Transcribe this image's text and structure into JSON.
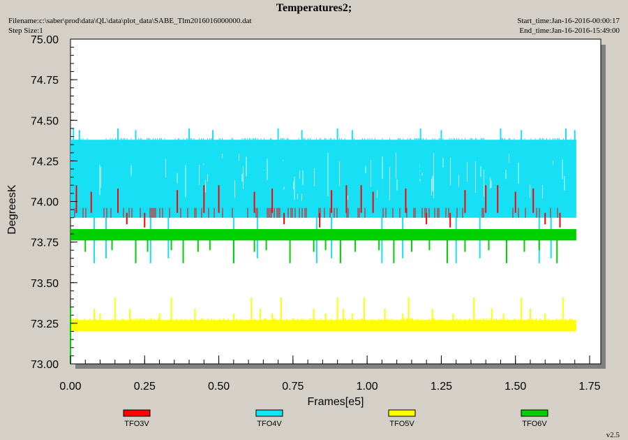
{
  "header": {
    "title": "Temperatures2;",
    "filename": "Filename:c:\\saber\\prod\\data\\QL\\data\\plot_data\\SABE_Tlm2016016000000.dat",
    "step_size": "Step Size:1",
    "start_time": "Start_time:Jan-16-2016-00:00:17",
    "end_time": "End_time:Jan-16-2016-15:49:00",
    "version": "v2.5"
  },
  "chart_data": {
    "type": "line",
    "title": "Temperatures2;",
    "xlabel": "Frames[e5]",
    "ylabel": "DegreesK",
    "xlim": [
      0.0,
      1.75
    ],
    "ylim": [
      73.0,
      75.0
    ],
    "x_ticks": [
      "0.00",
      "0.25",
      "0.50",
      "0.75",
      "1.00",
      "1.25",
      "1.50",
      "1.75"
    ],
    "y_ticks": [
      "75.00",
      "74.75",
      "74.50",
      "74.25",
      "74.00",
      "73.75",
      "73.50",
      "73.25",
      "73.00"
    ],
    "x_range_data": [
      0.0,
      1.705
    ],
    "grid": false,
    "legend_position": "bottom",
    "series": [
      {
        "name": "TFO3V",
        "color": "#ff0000",
        "band": [
          73.9,
          73.96
        ],
        "baseline": 73.94,
        "spike_values": [
          74.1,
          74.06,
          74.08,
          73.86,
          73.84,
          74.07,
          74.1
        ],
        "spike_x": [
          0.02,
          0.07,
          0.16,
          0.19,
          0.25,
          0.36,
          0.45,
          0.5,
          0.62,
          0.68,
          0.72,
          0.84,
          0.88,
          0.93,
          0.98,
          1.02,
          1.13,
          1.2,
          1.28,
          1.33,
          1.4,
          1.44,
          1.5,
          1.56,
          1.6,
          1.65
        ]
      },
      {
        "name": "TFO4V",
        "color": "#17e0f5",
        "band": [
          73.9,
          74.38
        ],
        "top_level": 74.39,
        "spike_values": [
          74.45,
          74.44,
          73.62,
          73.65
        ],
        "spike_x": [
          0.01,
          0.03,
          0.08,
          0.12,
          0.16,
          0.22,
          0.27,
          0.33,
          0.4,
          0.48,
          0.55,
          0.63,
          0.7,
          0.78,
          0.83,
          0.88,
          0.9,
          0.95,
          1.05,
          1.12,
          1.18,
          1.25,
          1.3,
          1.38,
          1.45,
          1.52,
          1.58,
          1.62,
          1.67,
          1.7
        ]
      },
      {
        "name": "TFO5V",
        "color": "#ffff00",
        "band": [
          73.2,
          73.27
        ],
        "top_level": 73.28,
        "spike_values": [
          73.34,
          73.31,
          73.41
        ],
        "spike_x": [
          0.08,
          0.1,
          0.15,
          0.2,
          0.3,
          0.34,
          0.42,
          0.55,
          0.61,
          0.64,
          0.68,
          0.71,
          0.82,
          0.86,
          0.9,
          0.92,
          0.95,
          0.99,
          1.06,
          1.12,
          1.14,
          1.22,
          1.29,
          1.36,
          1.42,
          1.46,
          1.52,
          1.55,
          1.6,
          1.66
        ]
      },
      {
        "name": "TFO6V",
        "color": "#00d000",
        "band": [
          73.76,
          73.83
        ],
        "baseline": 73.77,
        "spike_values": [
          73.69,
          73.7,
          73.62
        ],
        "spike_x": [
          0.05,
          0.14,
          0.22,
          0.26,
          0.34,
          0.38,
          0.43,
          0.47,
          0.55,
          0.62,
          0.66,
          0.74,
          0.82,
          0.86,
          0.91,
          0.96,
          1.04,
          1.09,
          1.15,
          1.21,
          1.27,
          1.33,
          1.41,
          1.47,
          1.53,
          1.58,
          1.64
        ]
      }
    ]
  }
}
